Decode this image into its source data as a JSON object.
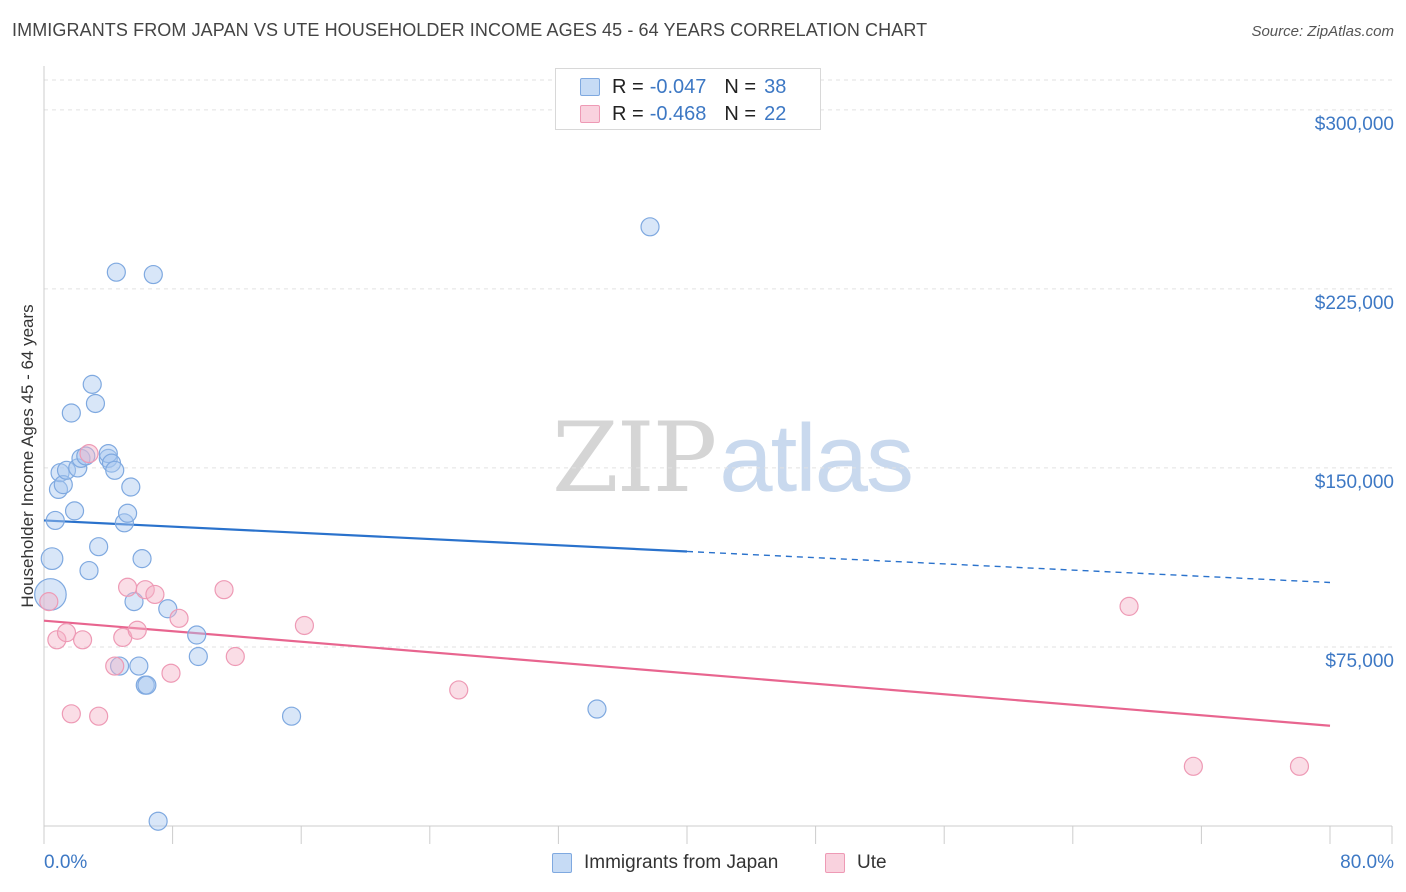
{
  "title": "IMMIGRANTS FROM JAPAN VS UTE HOUSEHOLDER INCOME AGES 45 - 64 YEARS CORRELATION CHART",
  "source": "Source: ZipAtlas.com",
  "watermark": {
    "zip": "ZIP",
    "atlas": "atlas"
  },
  "colors": {
    "japan": "#a9c8ef",
    "japan_line": "#2a72cc",
    "ute": "#f4b4c8",
    "ute_line": "#e8658f",
    "tick_text": "#3d78c4"
  },
  "legend": {
    "rows": [
      {
        "r_label": "R =",
        "r_value": "-0.047",
        "n_label": "N =",
        "n_value": "38"
      },
      {
        "r_label": "R =",
        "r_value": "-0.468",
        "n_label": "N =",
        "n_value": "22"
      }
    ]
  },
  "bottom_legend": {
    "japan": "Immigrants from Japan",
    "ute": "Ute"
  },
  "chart_data": {
    "type": "scatter",
    "title": "IMMIGRANTS FROM JAPAN VS UTE HOUSEHOLDER INCOME AGES 45 - 64 YEARS CORRELATION CHART",
    "xlabel": "",
    "ylabel": "Householder Income Ages 45 - 64 years",
    "xlim": [
      0,
      80
    ],
    "ylim": [
      0,
      312500
    ],
    "x_tick_labels": {
      "min": "0.0%",
      "max": "80.0%"
    },
    "y_ticks": [
      {
        "value": 75000,
        "label": "$75,000"
      },
      {
        "value": 150000,
        "label": "$150,000"
      },
      {
        "value": 225000,
        "label": "$225,000"
      },
      {
        "value": 300000,
        "label": "$300,000"
      }
    ],
    "grid": true,
    "series": [
      {
        "name": "Immigrants from Japan",
        "color_key": "japan",
        "points": [
          [
            0.4,
            97000,
            3
          ],
          [
            0.5,
            112000,
            2
          ],
          [
            0.7,
            128000,
            1
          ],
          [
            0.9,
            141000,
            1
          ],
          [
            1.0,
            148000,
            1
          ],
          [
            1.2,
            143000,
            1
          ],
          [
            1.4,
            149000,
            1
          ],
          [
            1.7,
            173000,
            1
          ],
          [
            1.9,
            132000,
            1
          ],
          [
            2.1,
            150000,
            1
          ],
          [
            2.3,
            154000,
            1
          ],
          [
            2.6,
            155000,
            1
          ],
          [
            2.8,
            107000,
            1
          ],
          [
            3.0,
            185000,
            1
          ],
          [
            3.2,
            177000,
            1
          ],
          [
            3.4,
            117000,
            1
          ],
          [
            4.0,
            154000,
            1
          ],
          [
            4.0,
            156000,
            1
          ],
          [
            4.2,
            152000,
            1
          ],
          [
            4.4,
            149000,
            1
          ],
          [
            4.5,
            232000,
            1
          ],
          [
            5.0,
            127000,
            1
          ],
          [
            5.2,
            131000,
            1
          ],
          [
            5.4,
            142000,
            1
          ],
          [
            5.6,
            94000,
            1
          ],
          [
            5.9,
            67000,
            1
          ],
          [
            6.1,
            112000,
            1
          ],
          [
            6.3,
            59000,
            1
          ],
          [
            6.4,
            59000,
            1
          ],
          [
            6.8,
            231000,
            1
          ],
          [
            7.1,
            2000,
            1
          ],
          [
            7.7,
            91000,
            1
          ],
          [
            9.5,
            80000,
            1
          ],
          [
            9.6,
            71000,
            1
          ],
          [
            15.4,
            46000,
            1
          ],
          [
            34.4,
            49000,
            1
          ],
          [
            37.7,
            251000,
            1
          ],
          [
            4.7,
            67000,
            1
          ]
        ]
      },
      {
        "name": "Ute",
        "color_key": "ute",
        "points": [
          [
            0.3,
            94000,
            1
          ],
          [
            0.8,
            78000,
            1
          ],
          [
            1.4,
            81000,
            1
          ],
          [
            1.7,
            47000,
            1
          ],
          [
            2.4,
            78000,
            1
          ],
          [
            2.8,
            156000,
            1
          ],
          [
            3.4,
            46000,
            1
          ],
          [
            4.4,
            67000,
            1
          ],
          [
            4.9,
            79000,
            1
          ],
          [
            5.2,
            100000,
            1
          ],
          [
            5.8,
            82000,
            1
          ],
          [
            6.3,
            99000,
            1
          ],
          [
            6.9,
            97000,
            1
          ],
          [
            7.9,
            64000,
            1
          ],
          [
            8.4,
            87000,
            1
          ],
          [
            11.2,
            99000,
            1
          ],
          [
            11.9,
            71000,
            1
          ],
          [
            16.2,
            84000,
            1
          ],
          [
            25.8,
            57000,
            1
          ],
          [
            67.5,
            92000,
            1
          ],
          [
            71.5,
            25000,
            1
          ],
          [
            78.1,
            25000,
            1
          ]
        ]
      }
    ],
    "trend_lines": [
      {
        "name": "Immigrants from Japan",
        "color_key": "japan_line",
        "solid": {
          "x": [
            0,
            40
          ],
          "y": [
            128000,
            115000
          ]
        },
        "dashed": {
          "x": [
            40,
            80
          ],
          "y": [
            115000,
            102000
          ]
        }
      },
      {
        "name": "Ute",
        "color_key": "ute_line",
        "solid": {
          "x": [
            0,
            80
          ],
          "y": [
            86000,
            42000
          ]
        }
      }
    ]
  }
}
